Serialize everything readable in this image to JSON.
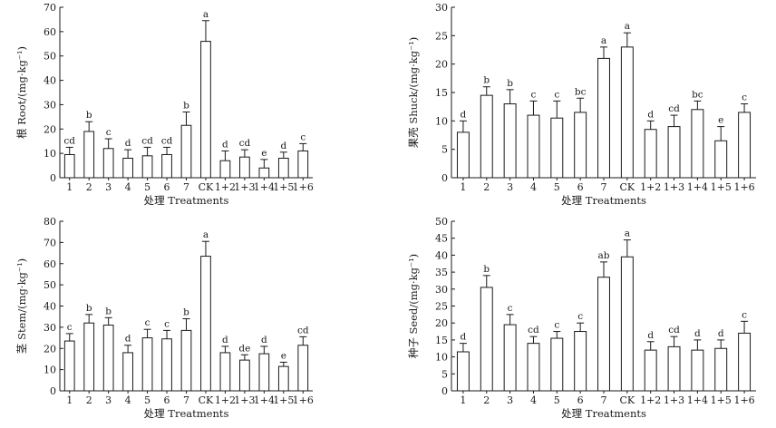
{
  "chart_data": [
    {
      "type": "bar",
      "ylabel": "根 Root/(mg·kg⁻¹)",
      "xlabel": "处理 Treatments",
      "categories": [
        "1",
        "2",
        "3",
        "4",
        "5",
        "6",
        "7",
        "CK",
        "1+2",
        "1+3",
        "1+4",
        "1+5",
        "1+6"
      ],
      "values": [
        9.5,
        19.0,
        12.0,
        8.0,
        9.0,
        9.5,
        21.5,
        56.0,
        7.0,
        8.5,
        4.0,
        8.0,
        11.0
      ],
      "errors": [
        3.0,
        4.0,
        4.0,
        3.5,
        3.5,
        3.0,
        5.5,
        8.5,
        4.0,
        3.0,
        3.5,
        2.5,
        3.0
      ],
      "letters": [
        "cd",
        "b",
        "c",
        "d",
        "cd",
        "cd",
        "b",
        "a",
        "d",
        "cd",
        "e",
        "d",
        "c"
      ],
      "ylim": [
        0,
        70
      ],
      "yticks": [
        0,
        10,
        20,
        30,
        40,
        50,
        60,
        70
      ],
      "grid": false,
      "color": "#ffffff"
    },
    {
      "type": "bar",
      "ylabel": "果壳 Shuck/(mg·kg⁻¹)",
      "xlabel": "处理 Treatments",
      "categories": [
        "1",
        "2",
        "3",
        "4",
        "5",
        "6",
        "7",
        "CK",
        "1+2",
        "1+3",
        "1+4",
        "1+5",
        "1+6"
      ],
      "values": [
        8.0,
        14.5,
        13.0,
        11.0,
        10.5,
        11.5,
        21.0,
        23.0,
        8.5,
        9.0,
        12.0,
        6.5,
        11.5
      ],
      "errors": [
        2.0,
        1.5,
        2.5,
        2.5,
        3.0,
        2.5,
        2.0,
        2.5,
        1.5,
        2.0,
        1.5,
        2.5,
        1.5
      ],
      "letters": [
        "d",
        "b",
        "b",
        "c",
        "c",
        "bc",
        "a",
        "a",
        "d",
        "cd",
        "bc",
        "e",
        "c"
      ],
      "ylim": [
        0,
        30
      ],
      "yticks": [
        0,
        5,
        10,
        15,
        20,
        25,
        30
      ],
      "grid": false,
      "color": "#ffffff"
    },
    {
      "type": "bar",
      "ylabel": "茎 Stem/(mg·kg⁻¹)",
      "xlabel": "处理 Treatments",
      "categories": [
        "1",
        "2",
        "3",
        "4",
        "5",
        "6",
        "7",
        "CK",
        "1+2",
        "1+3",
        "1+4",
        "1+5",
        "1+6"
      ],
      "values": [
        23.5,
        32.0,
        31.0,
        18.0,
        25.0,
        24.5,
        28.5,
        63.5,
        18.0,
        14.5,
        17.5,
        11.5,
        21.5
      ],
      "errors": [
        3.5,
        4.0,
        3.5,
        3.5,
        4.0,
        4.0,
        5.5,
        7.0,
        3.0,
        2.5,
        3.5,
        2.0,
        4.0
      ],
      "letters": [
        "c",
        "b",
        "b",
        "d",
        "c",
        "c",
        "b",
        "a",
        "d",
        "de",
        "d",
        "e",
        "cd"
      ],
      "ylim": [
        0,
        80
      ],
      "yticks": [
        0,
        10,
        20,
        30,
        40,
        50,
        60,
        70,
        80
      ],
      "grid": false,
      "color": "#ffffff"
    },
    {
      "type": "bar",
      "ylabel": "种子 Seed/(mg·kg⁻¹)",
      "xlabel": "处理 Treatments",
      "categories": [
        "1",
        "2",
        "3",
        "4",
        "5",
        "6",
        "7",
        "CK",
        "1+2",
        "1+3",
        "1+4",
        "1+5",
        "1+6"
      ],
      "values": [
        11.5,
        30.5,
        19.5,
        14.0,
        15.5,
        17.5,
        33.5,
        39.5,
        12.0,
        13.0,
        12.0,
        12.5,
        17.0
      ],
      "errors": [
        2.5,
        3.5,
        3.0,
        2.0,
        2.0,
        2.5,
        4.5,
        5.0,
        2.5,
        3.0,
        3.0,
        2.5,
        3.5
      ],
      "letters": [
        "d",
        "b",
        "c",
        "cd",
        "c",
        "c",
        "ab",
        "a",
        "d",
        "cd",
        "d",
        "d",
        "c"
      ],
      "ylim": [
        0,
        50
      ],
      "yticks": [
        0,
        5,
        10,
        15,
        20,
        25,
        30,
        35,
        40,
        45,
        50
      ],
      "grid": false,
      "color": "#ffffff"
    }
  ]
}
